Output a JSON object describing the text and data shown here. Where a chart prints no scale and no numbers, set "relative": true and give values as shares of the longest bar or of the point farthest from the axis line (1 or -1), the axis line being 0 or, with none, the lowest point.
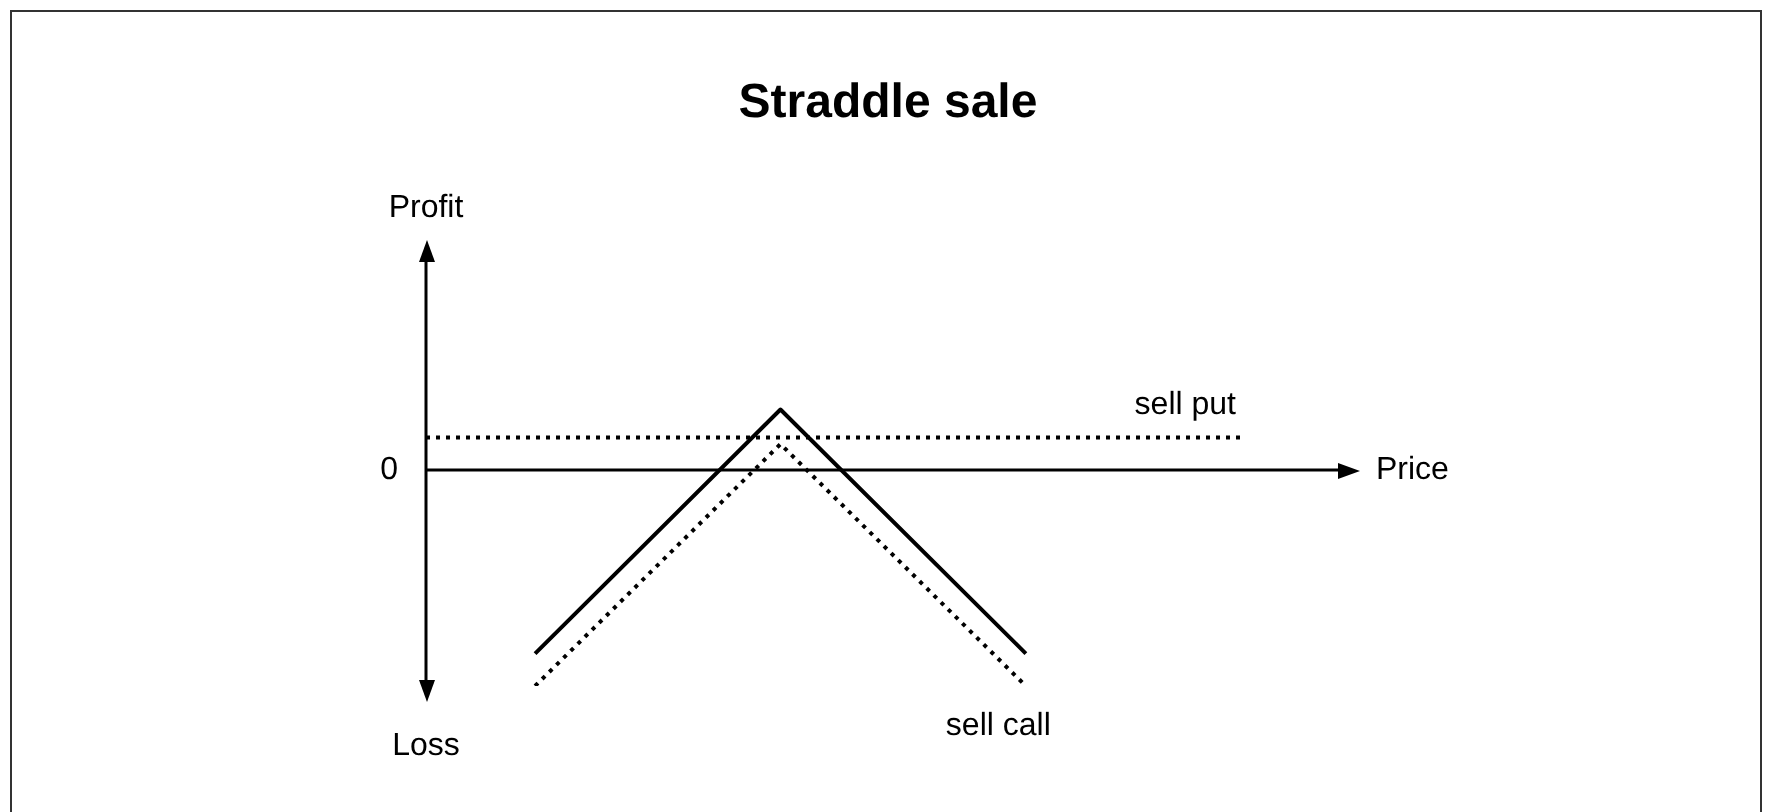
{
  "chart_data": {
    "type": "line",
    "title": "Straddle sale",
    "xlabel": "Price",
    "relative": true,
    "legend": false,
    "marker": "none",
    "annotations": [
      "Profit",
      "Loss",
      "0"
    ],
    "categories": [
      null,
      null,
      null,
      null,
      null,
      null,
      null,
      null,
      null,
      null,
      null,
      null,
      null,
      null,
      null,
      null,
      null,
      null,
      null,
      null,
      null,
      null,
      null,
      null,
      null,
      null,
      null,
      null,
      null,
      null,
      null
    ],
    "series": [
      {
        "color": "#000000",
        "line_style": "solid",
        "values": [
          null,
          null,
          null,
          null,
          -0.85,
          null,
          null,
          null,
          null,
          null,
          null,
          null,
          null,
          0.28,
          null,
          null,
          null,
          null,
          null,
          null,
          null,
          null,
          -0.85,
          null,
          null,
          null,
          null,
          null,
          null,
          null,
          null
        ]
      },
      {
        "name": "sell put",
        "color": "#000000",
        "line_style": "dotted",
        "values": [
          0.15,
          null,
          null,
          null,
          null,
          null,
          null,
          null,
          null,
          null,
          null,
          null,
          null,
          null,
          null,
          null,
          null,
          null,
          null,
          null,
          null,
          null,
          null,
          null,
          null,
          null,
          null,
          null,
          null,
          null,
          0.15
        ]
      },
      {
        "name": "sell call",
        "color": "#000000",
        "line_style": "dotted",
        "values": [
          null,
          null,
          null,
          null,
          -1,
          null,
          null,
          null,
          null,
          null,
          null,
          null,
          null,
          0.12,
          null,
          null,
          null,
          null,
          null,
          null,
          null,
          null,
          -1,
          null,
          null,
          null,
          null,
          null,
          null,
          null,
          null
        ]
      }
    ]
  }
}
